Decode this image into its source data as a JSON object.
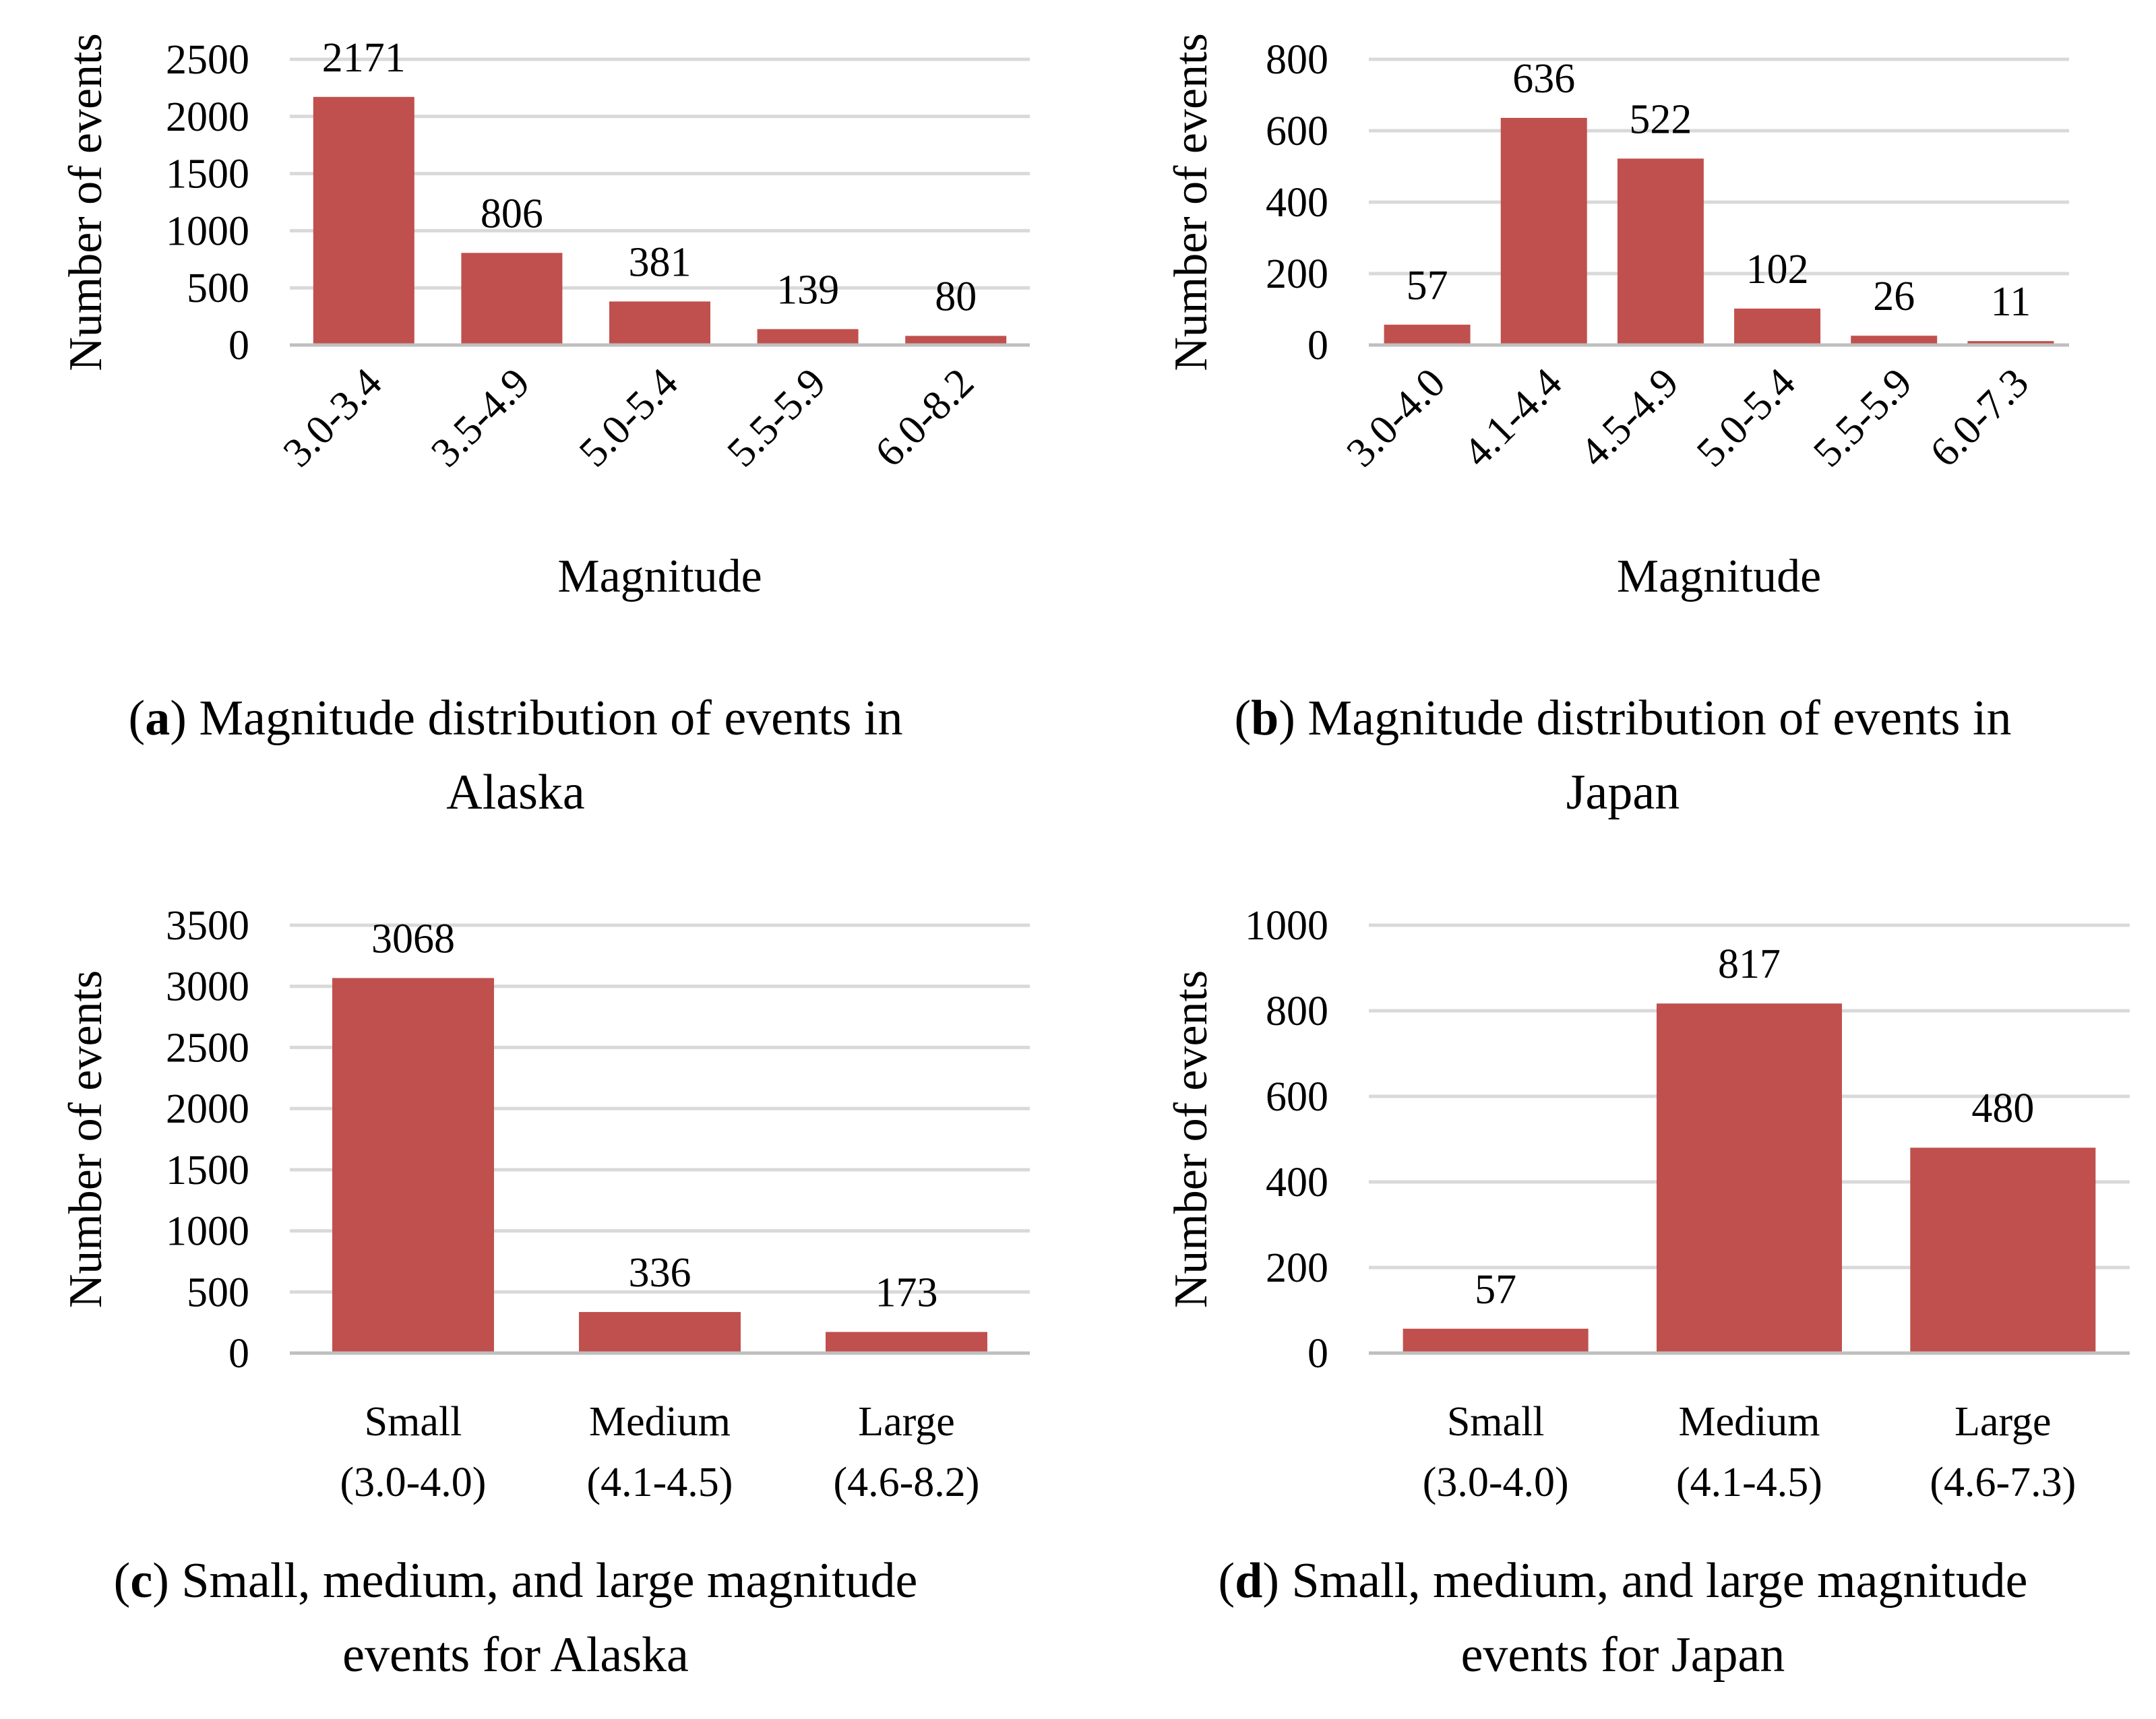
{
  "chart_data": [
    {
      "id": "a",
      "type": "bar",
      "categories": [
        "3.0-3.4",
        "3.5-4.9",
        "5.0-5.4",
        "5.5-5.9",
        "6.0-8.2"
      ],
      "values": [
        2171,
        806,
        381,
        139,
        80
      ],
      "xlabel": "Magnitude",
      "ylabel": "Number of events",
      "ylim": [
        0,
        2500
      ],
      "yticks": [
        0,
        500,
        1000,
        1500,
        2000,
        2500
      ],
      "color": "#c0504d",
      "caption": {
        "letter": "a",
        "line1": ") Magnitude distribution of events in",
        "line2": "Alaska"
      }
    },
    {
      "id": "b",
      "type": "bar",
      "categories": [
        "3.0-4.0",
        "4.1-4.4",
        "4.5-4.9",
        "5.0-5.4",
        "5.5-5.9",
        "6.0-7.3"
      ],
      "values": [
        57,
        636,
        522,
        102,
        26,
        11
      ],
      "xlabel": "Magnitude",
      "ylabel": "Number of events",
      "ylim": [
        0,
        800
      ],
      "yticks": [
        0,
        200,
        400,
        600,
        800
      ],
      "color": "#c0504d",
      "caption": {
        "letter": "b",
        "line1": ") Magnitude distribution of events in",
        "line2": "Japan"
      }
    },
    {
      "id": "c",
      "type": "bar",
      "categories": [
        [
          "Small",
          "(3.0-4.0)"
        ],
        [
          "Medium",
          "(4.1-4.5)"
        ],
        [
          "Large",
          "(4.6-8.2)"
        ]
      ],
      "values": [
        3068,
        336,
        173
      ],
      "xlabel": "",
      "ylabel": "Number of events",
      "ylim": [
        0,
        3500
      ],
      "yticks": [
        0,
        500,
        1000,
        1500,
        2000,
        2500,
        3000,
        3500
      ],
      "color": "#c0504d",
      "caption": {
        "letter": "c",
        "line1": ") Small, medium, and large magnitude",
        "line2": "events for Alaska"
      }
    },
    {
      "id": "d",
      "type": "bar",
      "categories": [
        [
          "Small",
          "(3.0-4.0)"
        ],
        [
          "Medium",
          "(4.1-4.5)"
        ],
        [
          "Large",
          "(4.6-7.3)"
        ]
      ],
      "values": [
        57,
        817,
        480
      ],
      "xlabel": "",
      "ylabel": "Number of events",
      "ylim": [
        0,
        1000
      ],
      "yticks": [
        0,
        200,
        400,
        600,
        800,
        1000
      ],
      "color": "#c0504d",
      "caption": {
        "letter": "d",
        "line1": ") Small, medium, and large magnitude",
        "line2": "events for Japan"
      }
    }
  ]
}
